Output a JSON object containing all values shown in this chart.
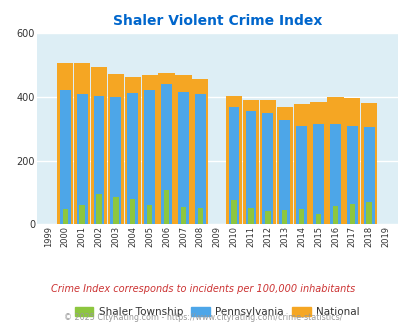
{
  "title": "Shaler Violent Crime Index",
  "years": [
    1999,
    2000,
    2001,
    2002,
    2003,
    2004,
    2005,
    2006,
    2007,
    2008,
    2009,
    2010,
    2011,
    2012,
    2013,
    2014,
    2015,
    2016,
    2017,
    2018,
    2019
  ],
  "shaler": [
    0,
    48,
    62,
    95,
    85,
    80,
    62,
    108,
    55,
    50,
    0,
    78,
    50,
    43,
    45,
    48,
    32,
    58,
    65,
    70,
    0
  ],
  "pennsylvania": [
    0,
    422,
    408,
    402,
    400,
    412,
    422,
    440,
    415,
    410,
    0,
    367,
    357,
    349,
    328,
    307,
    315,
    315,
    308,
    305,
    0
  ],
  "national": [
    0,
    507,
    506,
    494,
    471,
    463,
    468,
    474,
    467,
    455,
    0,
    404,
    390,
    391,
    368,
    376,
    383,
    399,
    397,
    382,
    0
  ],
  "bar_width": 0.32,
  "shaler_color": "#8dc63f",
  "pennsylvania_color": "#4da6e8",
  "national_color": "#f5a623",
  "bg_color": "#ddeef5",
  "title_color": "#0066cc",
  "ylim": [
    0,
    600
  ],
  "yticks": [
    0,
    200,
    400,
    600
  ],
  "grid_color": "#ffffff",
  "footnote": "Crime Index corresponds to incidents per 100,000 inhabitants",
  "copyright": "© 2025 CityRating.com - https://www.cityrating.com/crime-statistics/",
  "footnote_color": "#cc3333",
  "copyright_color": "#999999"
}
